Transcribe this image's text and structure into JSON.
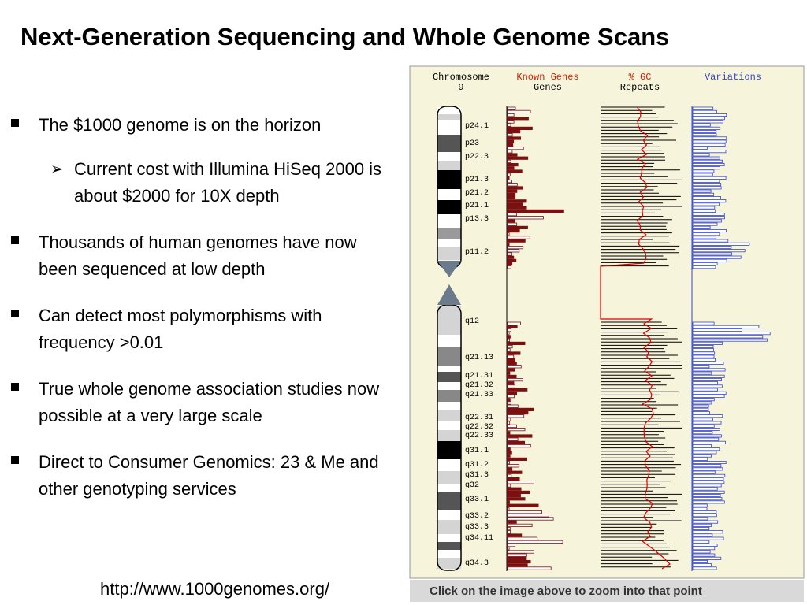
{
  "slide": {
    "title": "Next-Generation Sequencing and Whole Genome Scans",
    "bullets": [
      {
        "level": 1,
        "text": "The $1000 genome is on the horizon"
      },
      {
        "level": 2,
        "text": "Current cost with Illumina HiSeq 2000 is about $2000 for 10X depth"
      },
      {
        "level": 1,
        "text": "Thousands of human genomes have now been sequenced at low depth"
      },
      {
        "level": 1,
        "text": "Can detect most polymorphisms with frequency >0.01"
      },
      {
        "level": 1,
        "text": "True whole genome association studies now possible at a very large scale"
      },
      {
        "level": 1,
        "text": "Direct to Consumer Genomics: 23 & Me and other genotyping services"
      }
    ],
    "url": "http://www.1000genomes.org/"
  },
  "figure": {
    "headers": {
      "chromosome": "Chromosome",
      "chromosome_num": "9",
      "known_genes": "Known Genes",
      "genes": "Genes",
      "gc": "% GC",
      "repeats": "Repeats",
      "variations": "Variations"
    },
    "band_labels": [
      "p24.1",
      "p23",
      "p22.3",
      "p21.3",
      "p21.2",
      "p21.1",
      "p13.3",
      "p11.2",
      "q12",
      "q21.13",
      "q21.31",
      "q21.32",
      "q21.33",
      "q22.31",
      "q22.32",
      "q22.33",
      "q31.1",
      "q31.2",
      "q31.3",
      "q32",
      "q33.1",
      "q33.2",
      "q33.3",
      "q34.11",
      "q34.3"
    ],
    "caption": "Click on the image above to zoom into that point",
    "colors": {
      "panel_bg": "#f7f4dc",
      "known_genes": "#cc2200",
      "gc_header": "#cc2200",
      "variations": "#3344cc",
      "genes_bar": "#7a1010",
      "gc_line": "#dd0000",
      "caption_bg": "#d9d9d9"
    }
  }
}
